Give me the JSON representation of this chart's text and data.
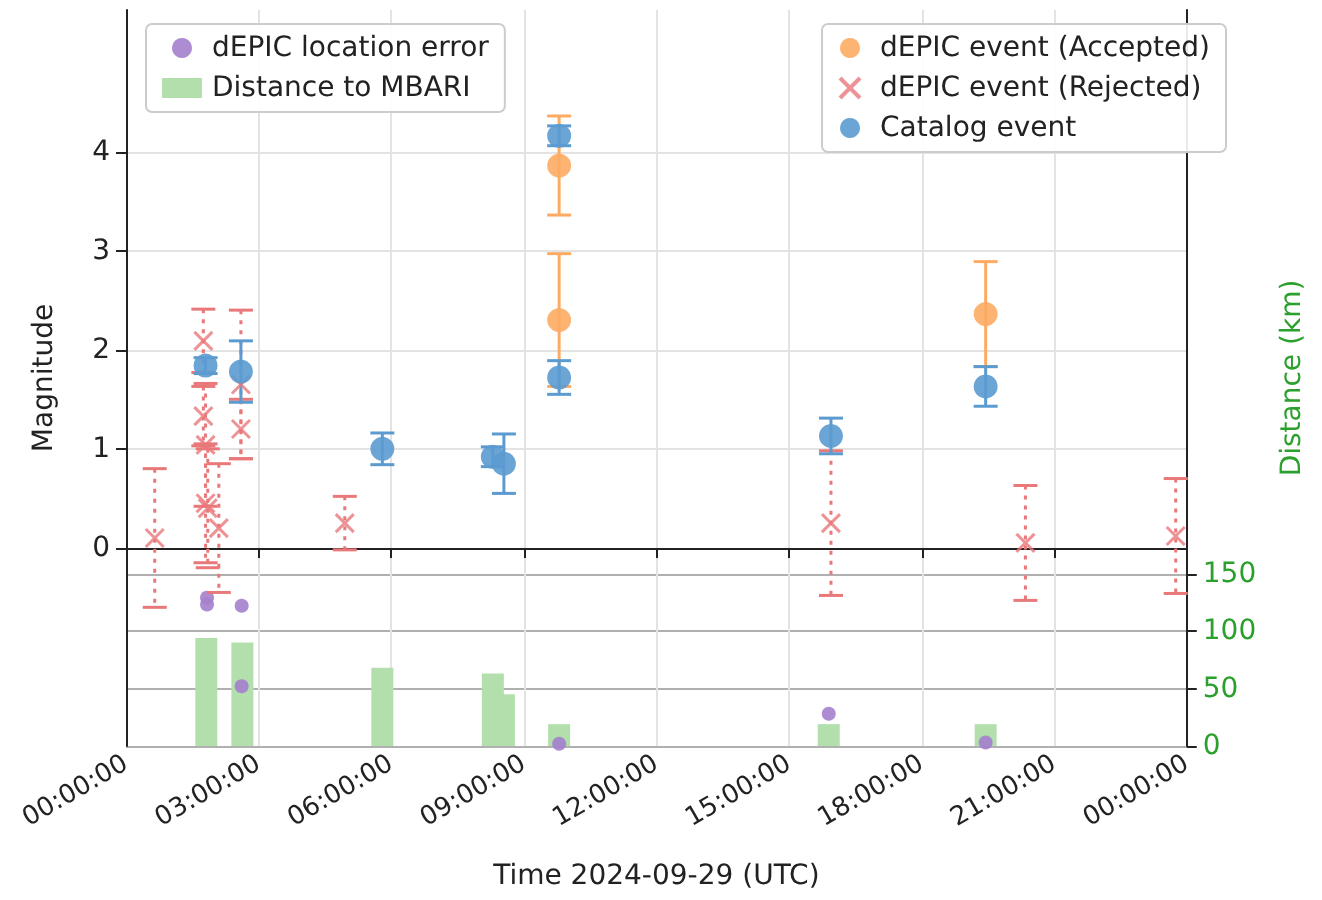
{
  "chart_data": {
    "type": "scatter",
    "xlabel": "Time 2024-09-29 (UTC)",
    "ylabel": "Magnitude",
    "y2label": "Distance (km)",
    "xlim": [
      "2024-09-29T00:00",
      "2024-09-30T00:00"
    ],
    "xticks": [
      {
        "value": "2024-09-29T00:00",
        "label": "00:00:00"
      },
      {
        "value": "2024-09-29T03:00",
        "label": "03:00:00"
      },
      {
        "value": "2024-09-29T06:00",
        "label": "06:00:00"
      },
      {
        "value": "2024-09-29T09:00",
        "label": "09:00:00"
      },
      {
        "value": "2024-09-29T12:00",
        "label": "12:00:00"
      },
      {
        "value": "2024-09-29T15:00",
        "label": "15:00:00"
      },
      {
        "value": "2024-09-29T18:00",
        "label": "18:00:00"
      },
      {
        "value": "2024-09-29T21:00",
        "label": "21:00:00"
      },
      {
        "value": "2024-09-30T00:00",
        "label": "00:00:00"
      }
    ],
    "ylim": [
      -2,
      5.43
    ],
    "yticks": [
      0,
      1,
      2,
      3,
      4
    ],
    "y2lim": [
      0,
      640
    ],
    "y2ticks": [
      0,
      50,
      100,
      150
    ],
    "grid": true,
    "legend": "top",
    "series": [
      {
        "name": "dEPIC location error",
        "axis": "y2",
        "marker": "circle",
        "color": "#a47fcd",
        "x": [
          "2024-09-29T01:50",
          "2024-09-29T01:50",
          "2024-09-29T02:37",
          "2024-09-29T02:37",
          "2024-09-29T09:48",
          "2024-09-29T15:54",
          "2024-09-29T19:27"
        ],
        "values": [
          129,
          123,
          122,
          52,
          2,
          28,
          3
        ]
      },
      {
        "name": "Distance to MBARI",
        "type": "bar",
        "axis": "y2",
        "color": "#b3dfad",
        "x": [
          "2024-09-29T01:49",
          "2024-09-29T02:38",
          "2024-09-29T05:48",
          "2024-09-29T08:18",
          "2024-09-29T08:33",
          "2024-09-29T09:48",
          "2024-09-29T15:54",
          "2024-09-29T19:27"
        ],
        "values": [
          94,
          90,
          68,
          63,
          45,
          19,
          19,
          19
        ]
      },
      {
        "name": "dEPIC event (Accepted)",
        "marker": "circle",
        "line_style": "solid",
        "color": "#fdab63",
        "x": [
          "2024-09-29T09:48",
          "2024-09-29T09:48",
          "2024-09-29T19:27"
        ],
        "values": [
          3.86,
          2.3,
          2.36
        ],
        "errors": [
          0.5,
          0.67,
          0.53
        ]
      },
      {
        "name": "dEPIC event (Rejected)",
        "marker": "cross",
        "line_style": "dotted",
        "color": "#e9787a",
        "x": [
          "2024-09-29T00:39",
          "2024-09-29T01:45",
          "2024-09-29T01:45",
          "2024-09-29T01:48",
          "2024-09-29T01:48",
          "2024-09-29T01:51",
          "2024-09-29T02:06",
          "2024-09-29T02:36",
          "2024-09-29T02:36",
          "2024-09-29T04:57",
          "2024-09-29T15:57",
          "2024-09-29T20:21",
          "2024-09-29T23:45"
        ],
        "values": [
          0.1,
          2.09,
          1.33,
          1.04,
          0.45,
          0.4,
          0.2,
          1.65,
          1.2,
          0.25,
          0.25,
          0.05,
          0.12
        ],
        "errors": [
          0.7,
          0.32,
          0.3,
          0.62,
          0.6,
          0.6,
          0.65,
          0.75,
          0.3,
          0.27,
          0.73,
          0.58,
          0.58
        ]
      },
      {
        "name": "Catalog event",
        "marker": "circle",
        "line_style": "solid",
        "color": "#5b9bd0",
        "x": [
          "2024-09-29T01:48",
          "2024-09-29T02:36",
          "2024-09-29T05:48",
          "2024-09-29T08:18",
          "2024-09-29T08:33",
          "2024-09-29T09:48",
          "2024-09-29T09:48",
          "2024-09-29T15:57",
          "2024-09-29T19:27"
        ],
        "values": [
          1.84,
          1.78,
          1.0,
          0.92,
          0.85,
          4.16,
          1.72,
          1.13,
          1.63
        ],
        "errors": [
          0.08,
          0.31,
          0.16,
          0.1,
          0.3,
          0.1,
          0.17,
          0.18,
          0.2
        ]
      }
    ]
  }
}
